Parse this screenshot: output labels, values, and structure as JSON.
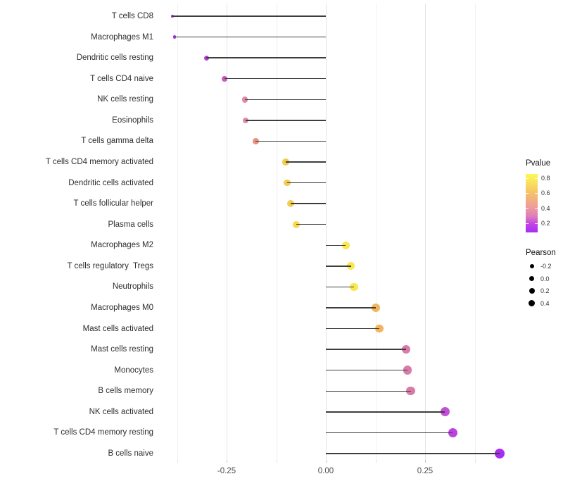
{
  "chart_data": {
    "type": "lollipop",
    "title": "",
    "xlabel": "",
    "ylabel": "",
    "x_ticks": [
      "-0.25",
      "0.00",
      "0.25"
    ],
    "x_tick_values": [
      -0.25,
      0.0,
      0.25
    ],
    "x_minor_values": [
      -0.375,
      -0.125,
      0.125,
      0.375
    ],
    "xlim": [
      -0.428,
      0.474
    ],
    "grid": "vertical-only",
    "categories": [
      "T cells CD8",
      "Macrophages M1",
      "Dendritic cells resting",
      "T cells CD4 naive",
      "NK cells resting",
      "Eosinophils",
      "T cells gamma delta",
      "T cells CD4 memory activated",
      "Dendritic cells activated",
      "T cells follicular helper",
      "Plasma cells",
      "Macrophages M2",
      "T cells regulatory  Tregs",
      "Neutrophils",
      "Macrophages M0",
      "Mast cells activated",
      "Mast cells resting",
      "Monocytes",
      "B cells memory",
      "NK cells activated",
      "T cells CD4 memory resting",
      "B cells naive"
    ],
    "series": [
      {
        "name": "Pearson",
        "values": [
          -0.387,
          -0.381,
          -0.301,
          -0.255,
          -0.204,
          -0.202,
          -0.177,
          -0.101,
          -0.097,
          -0.088,
          -0.074,
          0.05,
          0.063,
          0.071,
          0.126,
          0.135,
          0.202,
          0.206,
          0.214,
          0.3,
          0.32,
          0.438
        ]
      },
      {
        "name": "Pvalue (read from color scale)",
        "values": [
          0.12,
          0.12,
          0.22,
          0.3,
          0.43,
          0.43,
          0.5,
          0.68,
          0.68,
          0.69,
          0.73,
          0.82,
          0.82,
          0.82,
          0.58,
          0.58,
          0.38,
          0.38,
          0.38,
          0.26,
          0.18,
          0.1
        ]
      }
    ],
    "point_colors": [
      "#a032e6",
      "#a032e6",
      "#b840d4",
      "#c75bbe",
      "#de8ca2",
      "#de8ca2",
      "#e39380",
      "#f2cb52",
      "#f2cb52",
      "#f3ce4f",
      "#f6da4c",
      "#fae74e",
      "#fae74e",
      "#fae74e",
      "#f2b65f",
      "#f2b45f",
      "#d97ba8",
      "#d97ba8",
      "#d97ba8",
      "#c24fd8",
      "#bc41e0",
      "#a92cf2"
    ],
    "stem_color": "#3d3d3d",
    "legend_position": "right",
    "legend": {
      "pvalue": {
        "title": "Pvalue",
        "ticks": [
          "0.8",
          "0.6",
          "0.4",
          "0.2"
        ],
        "range": [
          0.08,
          0.85
        ],
        "gradient_top_to_bottom": [
          "#fdf84e",
          "#f5c368",
          "#ec9a9c",
          "#c247e2",
          "#a82bf4"
        ]
      },
      "pearson": {
        "title": "Pearson",
        "ticks": [
          "-0.2",
          "0.0",
          "0.2",
          "0.4"
        ],
        "dot_color": "#000000"
      }
    }
  }
}
